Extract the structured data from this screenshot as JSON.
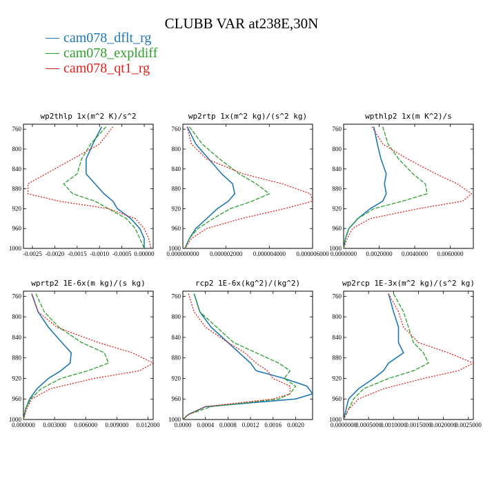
{
  "title": "CLUBB VAR at238E,30N",
  "legend": [
    {
      "name": "cam078_dflt_rg",
      "color": "#1f77b4"
    },
    {
      "name": "cam078_expldiff",
      "color": "#2ca02c"
    },
    {
      "name": "cam078_qt1_rg",
      "color": "#e0201b"
    }
  ],
  "chart_data": [
    {
      "type": "line",
      "title": "wp2thlp  1x(m^2 K)/s^2",
      "xlim": [
        -0.0027,
        0.0002
      ],
      "ylim": [
        1000,
        750
      ],
      "xticks": [
        -0.0025,
        -0.002,
        -0.0015,
        -0.001,
        -0.0005,
        0.0
      ],
      "xtick_labels": [
        "-0.0025",
        "-0.0020",
        "-0.0015",
        "-0.0010",
        "-0.0005",
        "0.00000"
      ],
      "yticks": [
        760,
        800,
        840,
        880,
        920,
        960,
        1000
      ],
      "y": [
        755,
        790,
        820,
        850,
        870,
        890,
        905,
        920,
        940,
        960,
        980,
        1000
      ],
      "series": [
        {
          "name": "cam078_dflt_rg",
          "values": [
            -0.00095,
            -0.00115,
            -0.0013,
            -0.0013,
            -0.0011,
            -0.0009,
            -0.0007,
            -0.0006,
            -0.0003,
            -0.0001,
            0.0,
            0.0
          ]
        },
        {
          "name": "cam078_expldiff",
          "values": [
            -0.00085,
            -0.0012,
            -0.0014,
            -0.0015,
            -0.0018,
            -0.0016,
            -0.0011,
            -0.0008,
            -0.0004,
            -0.0002,
            -0.0001,
            0.0
          ]
        },
        {
          "name": "cam078_qt1_rg",
          "values": [
            -0.0007,
            -0.001,
            -0.0016,
            -0.0022,
            -0.0026,
            -0.0026,
            -0.0019,
            -0.0008,
            -0.0002,
            0.0,
            0.0001,
            0.00015
          ]
        }
      ]
    },
    {
      "type": "line",
      "title": "wp2rtp  1x(m^2 kg)/(s^2 kg)",
      "xlim": [
        0,
        6e-06
      ],
      "ylim": [
        1000,
        750
      ],
      "xticks": [
        0,
        2e-06,
        4e-06,
        6e-06
      ],
      "xtick_labels": [
        "0.000000000",
        "0.000002000",
        "0.000004000",
        "0.000006000"
      ],
      "yticks": [
        760,
        800,
        840,
        880,
        920,
        960,
        1000
      ],
      "y": [
        755,
        790,
        820,
        850,
        870,
        890,
        905,
        920,
        940,
        960,
        980,
        1000
      ],
      "series": [
        {
          "name": "cam078_dflt_rg",
          "values": [
            2e-07,
            6e-07,
            1.2e-06,
            1.8e-06,
            2.3e-06,
            2.4e-06,
            2.1e-06,
            1.6e-06,
            1.1e-06,
            6e-07,
            3e-07,
            1e-07
          ]
        },
        {
          "name": "cam078_expldiff",
          "values": [
            3e-07,
            9e-07,
            1.7e-06,
            2.6e-06,
            3.4e-06,
            4e-06,
            3.2e-06,
            2.2e-06,
            1.4e-06,
            7e-07,
            3e-07,
            1e-07
          ]
        },
        {
          "name": "cam078_qt1_rg",
          "values": [
            2e-07,
            4e-07,
            1.1e-06,
            2.8e-06,
            4.6e-06,
            5.9e-06,
            6e-06,
            4.7e-06,
            2.7e-06,
            1.1e-06,
            4e-07,
            1e-07
          ]
        }
      ]
    },
    {
      "type": "line",
      "title": "wpthlp2  1x(m K^2)/s",
      "xlim": [
        0,
        0.0073
      ],
      "ylim": [
        1000,
        750
      ],
      "xticks": [
        0,
        0.002,
        0.004,
        0.006
      ],
      "xtick_labels": [
        "0.0000000",
        "0.0020000",
        "0.0040000",
        "0.0060000"
      ],
      "yticks": [
        760,
        800,
        840,
        880,
        920,
        960,
        1000
      ],
      "y": [
        755,
        790,
        820,
        850,
        870,
        890,
        905,
        920,
        940,
        960,
        980,
        1000
      ],
      "series": [
        {
          "name": "cam078_dflt_rg",
          "values": [
            0.0017,
            0.0019,
            0.0021,
            0.0024,
            0.0023,
            0.0024,
            0.0022,
            0.0015,
            0.0008,
            0.0003,
            0.0001,
            0.0
          ]
        },
        {
          "name": "cam078_expldiff",
          "values": [
            0.0022,
            0.0025,
            0.0031,
            0.0039,
            0.0046,
            0.0047,
            0.0033,
            0.0017,
            0.0008,
            0.0003,
            0.0001,
            0.0
          ]
        },
        {
          "name": "cam078_qt1_rg",
          "values": [
            0.0016,
            0.0022,
            0.0036,
            0.0052,
            0.0064,
            0.0072,
            0.0067,
            0.0042,
            0.0015,
            0.0005,
            0.0002,
            0.0
          ]
        }
      ]
    },
    {
      "type": "line",
      "title": "wprtp2  1E-6x(m kg)/(s kg)",
      "xlim": [
        0,
        0.0125
      ],
      "ylim": [
        1000,
        750
      ],
      "xticks": [
        0,
        0.003,
        0.006,
        0.009,
        0.012
      ],
      "xtick_labels": [
        "0.000000",
        "0.003000",
        "0.006000",
        "0.009000",
        "0.012000"
      ],
      "yticks": [
        760,
        800,
        840,
        880,
        920,
        960,
        1000
      ],
      "y": [
        755,
        790,
        820,
        850,
        870,
        890,
        905,
        920,
        940,
        960,
        980,
        1000
      ],
      "series": [
        {
          "name": "cam078_dflt_rg",
          "values": [
            0.0008,
            0.0014,
            0.0024,
            0.0037,
            0.0046,
            0.0045,
            0.0036,
            0.0024,
            0.0013,
            0.0006,
            0.0002,
            0.0
          ]
        },
        {
          "name": "cam078_expldiff",
          "values": [
            0.0012,
            0.002,
            0.0034,
            0.0056,
            0.0078,
            0.0082,
            0.0062,
            0.0036,
            0.0017,
            0.0007,
            0.0002,
            0.0
          ]
        },
        {
          "name": "cam078_qt1_rg",
          "values": [
            0.0008,
            0.0014,
            0.0032,
            0.0072,
            0.0105,
            0.0125,
            0.0112,
            0.0068,
            0.0026,
            0.0008,
            0.0003,
            0.0
          ]
        }
      ]
    },
    {
      "type": "line",
      "title": "rcp2  1E-6x(kg^2)/(kg^2)",
      "xlim": [
        0,
        0.0023
      ],
      "ylim": [
        1000,
        750
      ],
      "xticks": [
        0,
        0.0004,
        0.0008,
        0.0012,
        0.0016,
        0.002
      ],
      "xtick_labels": [
        "0.0000",
        "0.0004",
        "0.0008",
        "0.0012",
        "0.0016",
        "0.0020"
      ],
      "yticks": [
        760,
        800,
        840,
        880,
        920,
        960,
        1000
      ],
      "y": [
        755,
        790,
        820,
        850,
        870,
        890,
        905,
        920,
        935,
        950,
        960,
        975,
        990,
        1000
      ],
      "series": [
        {
          "name": "cam078_dflt_rg",
          "values": [
            0.0002,
            0.0003,
            0.0005,
            0.0008,
            0.001,
            0.0012,
            0.0013,
            0.0018,
            0.0022,
            0.0023,
            0.002,
            0.0004,
            0.0001,
            0.0
          ]
        },
        {
          "name": "cam078_expldiff",
          "values": [
            0.0002,
            0.0003,
            0.0006,
            0.0009,
            0.0013,
            0.0017,
            0.0019,
            0.0018,
            0.002,
            0.0019,
            0.0017,
            0.0005,
            0.0001,
            0.0
          ]
        },
        {
          "name": "cam078_qt1_rg",
          "values": [
            0.0001,
            0.0002,
            0.0004,
            0.0008,
            0.0011,
            0.0013,
            0.0015,
            0.0016,
            0.0019,
            0.0019,
            0.0016,
            0.0004,
            0.0001,
            0.0
          ]
        }
      ]
    },
    {
      "type": "line",
      "title": "wp2rcp  1E-3x(m^2 kg)/(s^2 kg)",
      "xlim": [
        0,
        0.0026
      ],
      "ylim": [
        1000,
        750
      ],
      "xticks": [
        0,
        0.0005,
        0.001,
        0.0015,
        0.002,
        0.0025
      ],
      "xtick_labels": [
        "0.0000000",
        "0.0005000",
        "0.0010000",
        "0.0015000",
        "0.0020000",
        "0.0025000"
      ],
      "yticks": [
        760,
        800,
        840,
        880,
        920,
        960,
        1000
      ],
      "y": [
        755,
        790,
        820,
        850,
        870,
        890,
        905,
        920,
        940,
        960,
        980,
        1000
      ],
      "series": [
        {
          "name": "cam078_dflt_rg",
          "values": [
            0.0009,
            0.001,
            0.0011,
            0.0011,
            0.0012,
            0.0009,
            0.0008,
            0.0006,
            0.0003,
            0.0001,
            5e-05,
            0.0
          ]
        },
        {
          "name": "cam078_expldiff",
          "values": [
            0.001,
            0.0012,
            0.0013,
            0.0014,
            0.0016,
            0.0017,
            0.0014,
            0.0009,
            0.0004,
            0.0002,
            0.0001,
            0.0
          ]
        },
        {
          "name": "cam078_qt1_rg",
          "values": [
            0.0009,
            0.0011,
            0.0012,
            0.0015,
            0.0021,
            0.0026,
            0.0023,
            0.0016,
            0.0008,
            0.0003,
            0.0001,
            0.0
          ]
        }
      ]
    }
  ]
}
